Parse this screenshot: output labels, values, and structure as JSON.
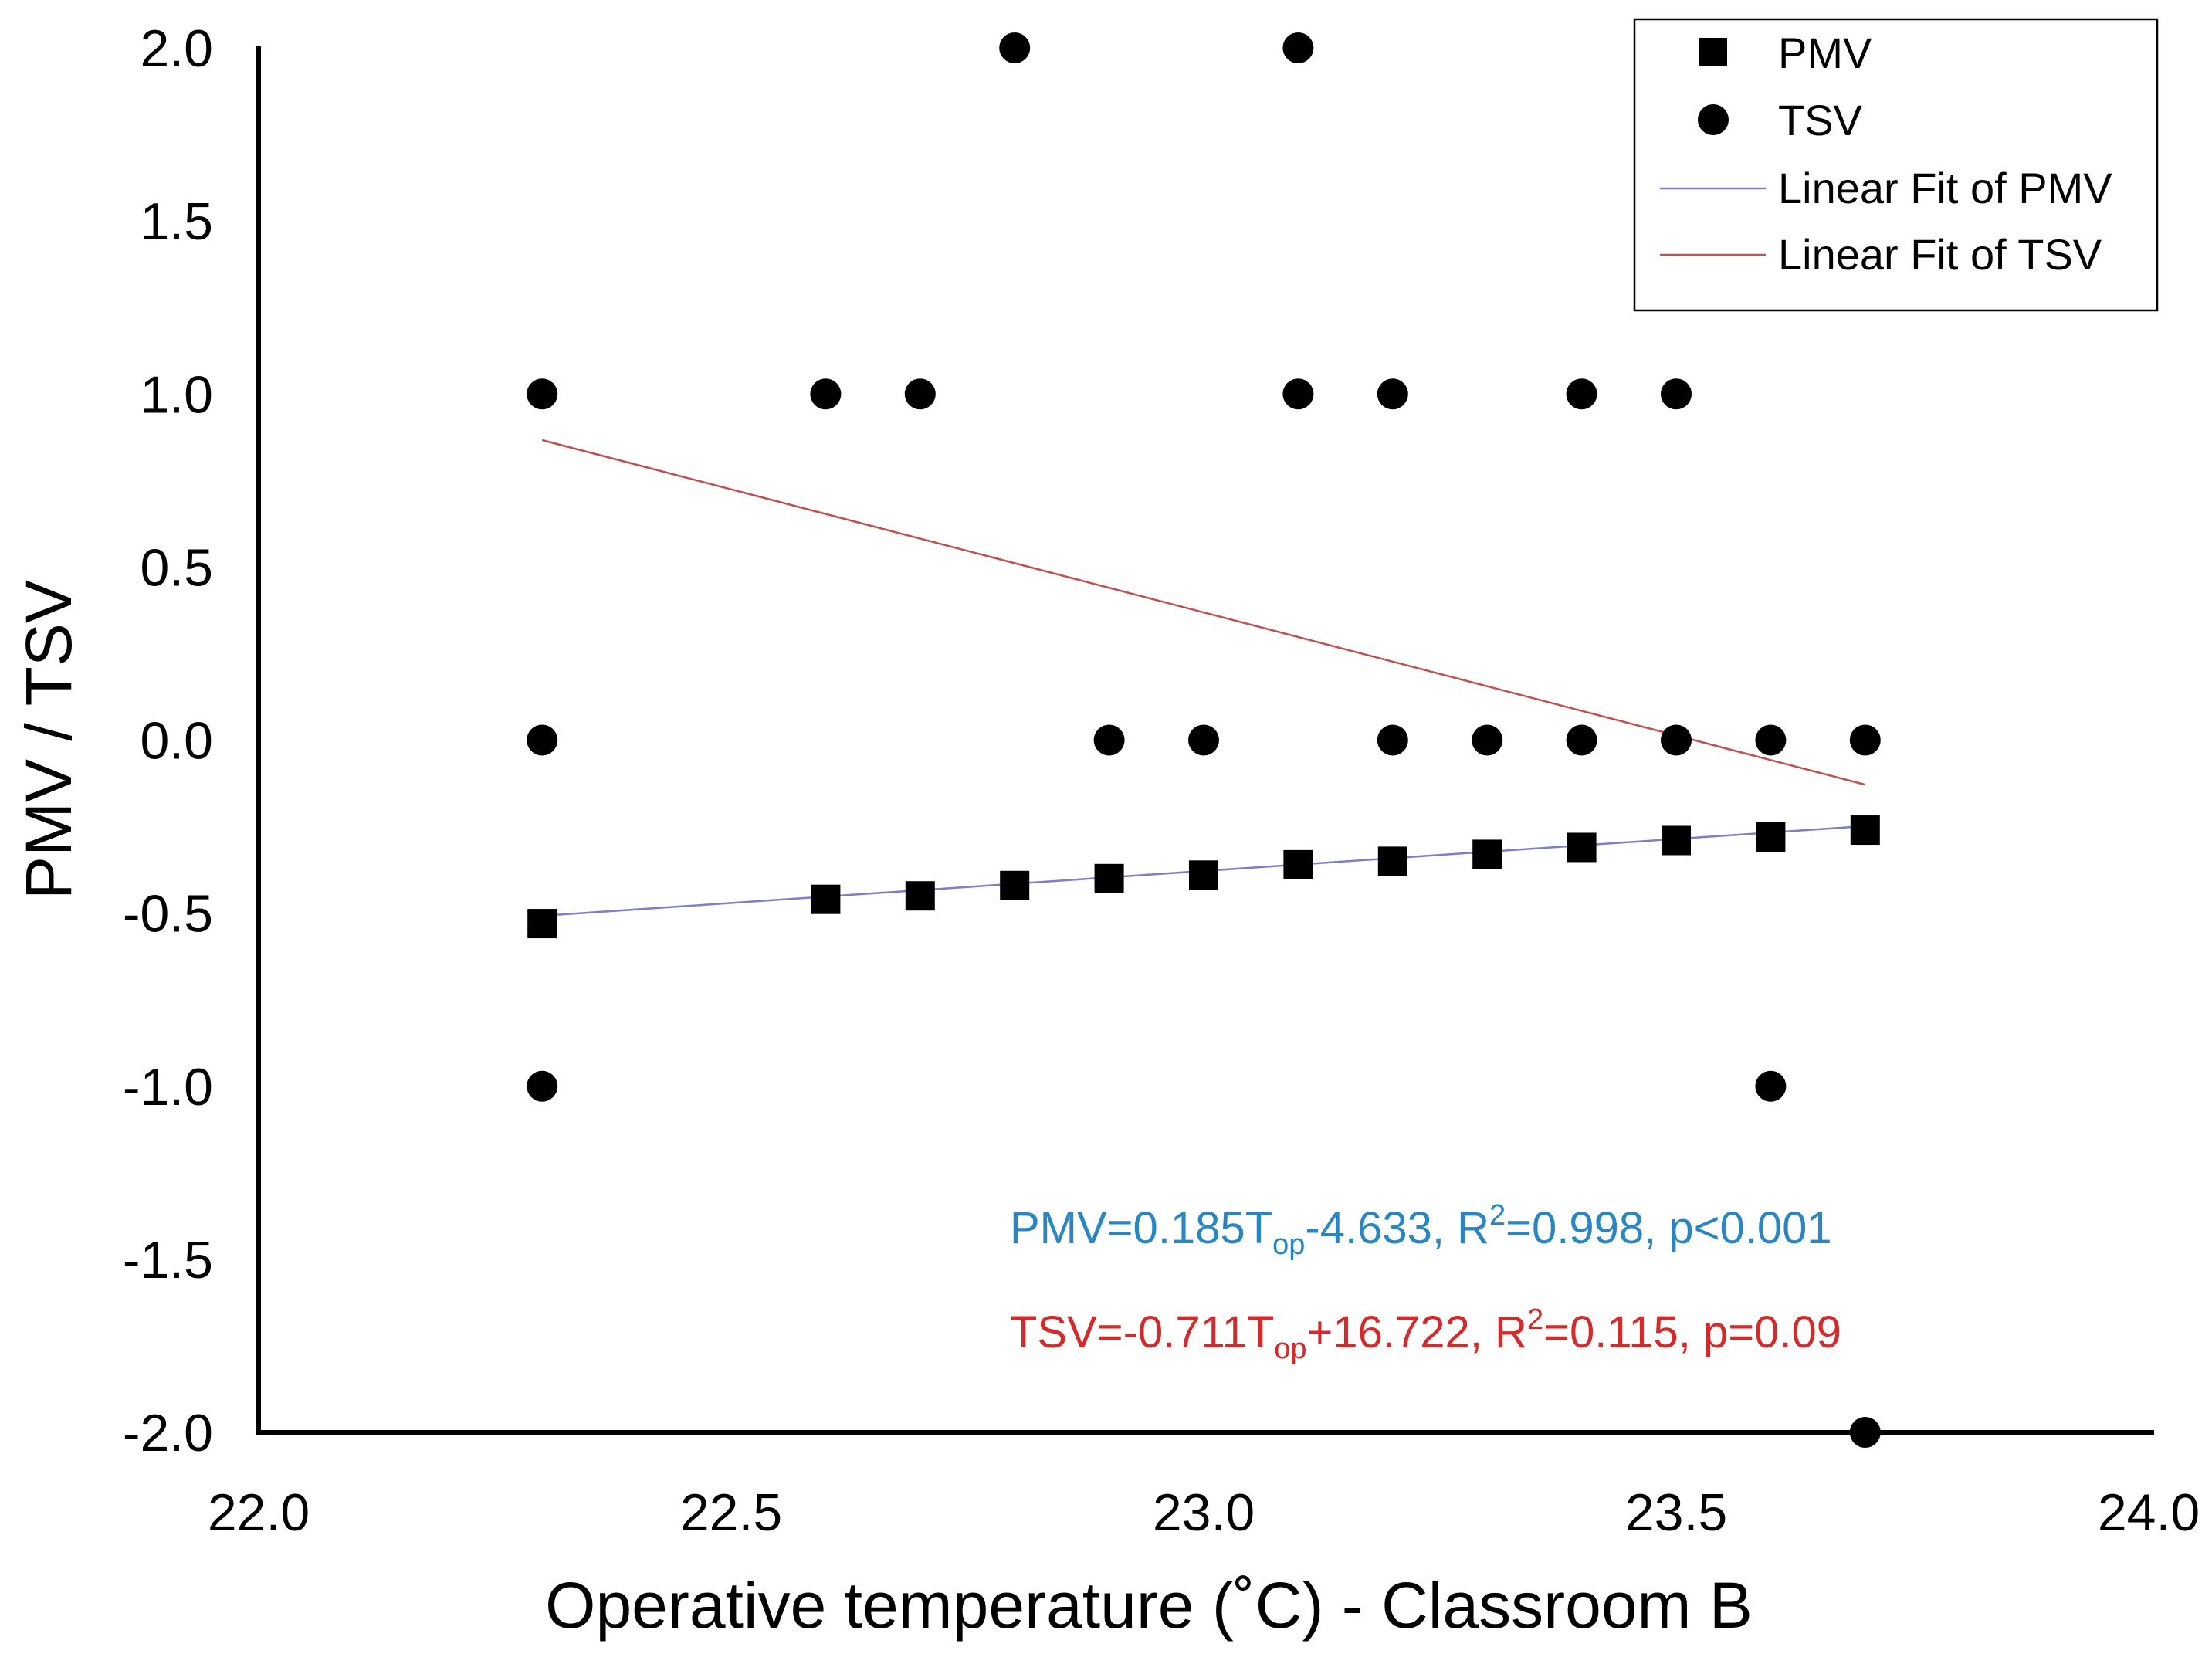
{
  "colors": {
    "pmv_fit": "#7c7fc8",
    "tsv_fit": "#c0504d",
    "pmv_equation": "#2a86c2",
    "tsv_equation": "#d42a2a",
    "markers": "#000000"
  },
  "chart_data": {
    "type": "scatter",
    "title": "",
    "xlabel": "Operative temperature (˚C) - Classroom B",
    "ylabel": "PMV / TSV",
    "xlim": [
      22.0,
      24.0
    ],
    "ylim": [
      -2.0,
      2.0
    ],
    "x_ticks": [
      "22.0",
      "22.5",
      "23.0",
      "23.5",
      "24.0"
    ],
    "y_ticks": [
      "2.0",
      "1.5",
      "1.0",
      "0.5",
      "0.0",
      "-0.5",
      "-1.0",
      "-1.5",
      "-2.0"
    ],
    "grid": false,
    "legend_position": "top-right",
    "legend": [
      "PMV",
      "TSV",
      "Linear Fit of PMV",
      "Linear Fit of TSV"
    ],
    "series": [
      {
        "name": "PMV",
        "marker": "square",
        "points": [
          [
            22.3,
            -0.53
          ],
          [
            22.6,
            -0.46
          ],
          [
            22.7,
            -0.45
          ],
          [
            22.8,
            -0.42
          ],
          [
            22.9,
            -0.4
          ],
          [
            23.0,
            -0.39
          ],
          [
            23.1,
            -0.36
          ],
          [
            23.2,
            -0.35
          ],
          [
            23.3,
            -0.33
          ],
          [
            23.4,
            -0.31
          ],
          [
            23.5,
            -0.29
          ],
          [
            23.6,
            -0.28
          ],
          [
            23.7,
            -0.26
          ]
        ]
      },
      {
        "name": "TSV",
        "marker": "circle",
        "points": [
          [
            22.3,
            1
          ],
          [
            22.3,
            0
          ],
          [
            22.3,
            -1
          ],
          [
            22.6,
            1
          ],
          [
            22.7,
            1
          ],
          [
            22.8,
            2
          ],
          [
            22.9,
            0
          ],
          [
            23.0,
            0
          ],
          [
            23.1,
            2
          ],
          [
            23.1,
            1
          ],
          [
            23.2,
            1
          ],
          [
            23.2,
            0
          ],
          [
            23.3,
            0
          ],
          [
            23.4,
            1
          ],
          [
            23.4,
            0
          ],
          [
            23.5,
            1
          ],
          [
            23.5,
            0
          ],
          [
            23.6,
            0
          ],
          [
            23.6,
            -1
          ],
          [
            23.7,
            0
          ],
          [
            23.7,
            -2
          ]
        ]
      }
    ],
    "fits": [
      {
        "name": "Linear Fit of PMV",
        "slope": 0.185,
        "intercept": -4.633,
        "x_range": [
          22.3,
          23.7
        ]
      },
      {
        "name": "Linear Fit of TSV",
        "slope": -0.711,
        "intercept": 16.722,
        "x_range": [
          22.3,
          23.7
        ]
      }
    ],
    "annotations": {
      "pmv_equation": {
        "prefix": "PMV=0.185T",
        "subscript": "op",
        "middle": "-4.633, R",
        "superscript": "2",
        "suffix": "=0.998,  p<0.001"
      },
      "tsv_equation": {
        "prefix": "TSV=-0.711T",
        "subscript": "op",
        "middle": "+16.722, R",
        "superscript": "2",
        "suffix": "=0.115, p=0.09"
      }
    }
  }
}
